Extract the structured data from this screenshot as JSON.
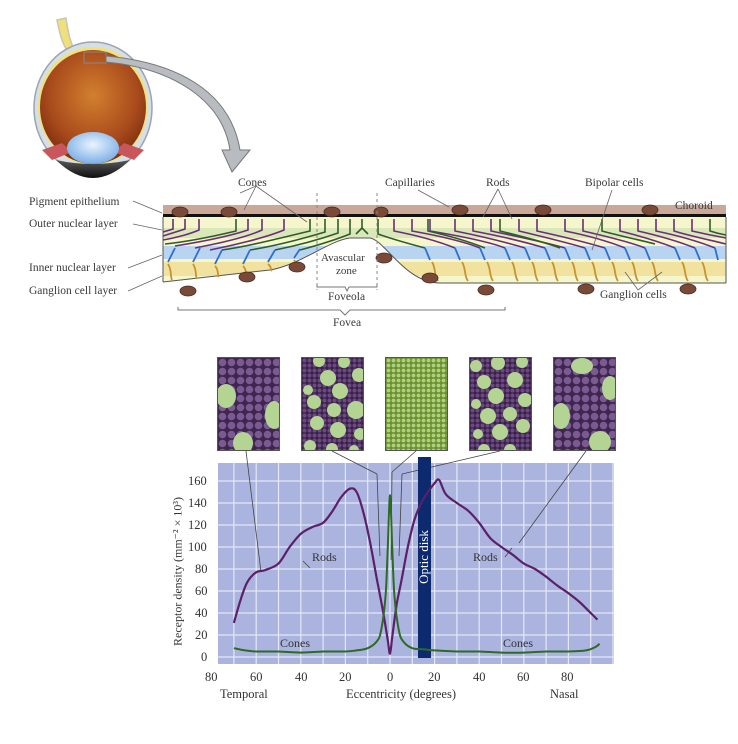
{
  "figure": {
    "eye_illustration": {
      "zoom_box": "retina-detail-box",
      "arrow": "curved-arrow-to-cross-section"
    },
    "retina_cross_section": {
      "left_labels": [
        "Pigment epithelium",
        "Outer nuclear layer",
        "Inner nuclear layer",
        "Ganglion cell layer"
      ],
      "top_labels": {
        "cones": "Cones",
        "capillaries": "Capillaries",
        "rods": "Rods",
        "bipolar_cells": "Bipolar cells",
        "choroid": "Choroid"
      },
      "center_labels": {
        "avascular_zone_line1": "Avascular",
        "avascular_zone_line2": "zone",
        "foveola": "Foveola",
        "fovea": "Fovea"
      },
      "bottom_labels": {
        "ganglion_cells": "Ganglion cells"
      },
      "colors": {
        "choroid": "#c9a89a",
        "capillary": "#7a4a38",
        "rod_fiber": "#6b2e7a",
        "cone_fiber": "#2e5e28",
        "bipolar": "#2f6fd0",
        "ganglion": "#c49430",
        "outer_layer_bg": "#f4f4c6",
        "inner_layer_bg": "#b8d4f0",
        "ganglion_layer_bg": "#f3e6a8"
      }
    },
    "mosaic_panels": [
      {
        "name": "temporal-periphery-mosaic",
        "type": "rods-dominant"
      },
      {
        "name": "temporal-parafovea-mosaic",
        "type": "mixed"
      },
      {
        "name": "foveola-mosaic",
        "type": "cones-only"
      },
      {
        "name": "nasal-parafovea-mosaic",
        "type": "mixed"
      },
      {
        "name": "nasal-periphery-mosaic",
        "type": "rods-dominant"
      }
    ]
  },
  "chart_data": {
    "type": "line",
    "title": "",
    "xlabel": "Eccentricity (degrees)",
    "ylabel": "Receptor density (mm⁻² × 10³)",
    "x_side_labels": {
      "left": "Temporal",
      "right": "Nasal"
    },
    "x_tick_labels": [
      "80",
      "60",
      "40",
      "20",
      "0",
      "20",
      "40",
      "60",
      "80"
    ],
    "x_tick_values": [
      -80,
      -60,
      -40,
      -20,
      0,
      20,
      40,
      60,
      80
    ],
    "y_tick_labels": [
      "160",
      "140",
      "120",
      "100",
      "80",
      "60",
      "40",
      "20",
      "0"
    ],
    "xlim": [
      -80,
      98
    ],
    "ylim": [
      -6,
      176
    ],
    "grid": true,
    "background": "#aab4de",
    "annotations": [
      {
        "text": "Rods",
        "x": -30,
        "y": 95
      },
      {
        "text": "Rods",
        "x": 45,
        "y": 95
      },
      {
        "text": "Cones",
        "x": -40,
        "y": 14
      },
      {
        "text": "Cones",
        "x": 58,
        "y": 14
      },
      {
        "text": "Optic disk",
        "x_range": [
          12.5,
          18.5
        ],
        "vertical": true,
        "color": "#0d2a6e"
      }
    ],
    "series": [
      {
        "name": "Rods",
        "color": "#5c1f6a",
        "x": [
          -70,
          -67,
          -64,
          -60,
          -56,
          -50,
          -45,
          -40,
          -35,
          -30,
          -26,
          -22,
          -18,
          -15,
          -12,
          -9,
          -6,
          -3,
          -1,
          0,
          1,
          3,
          5,
          8,
          11,
          14,
          17,
          20,
          22,
          25,
          30,
          35,
          40,
          45,
          50,
          55,
          60,
          65,
          70,
          75,
          80,
          85,
          90,
          93
        ],
        "values": [
          31,
          52,
          68,
          77,
          79,
          85,
          100,
          112,
          118,
          122,
          132,
          145,
          153,
          150,
          132,
          105,
          72,
          40,
          15,
          3,
          18,
          48,
          68,
          100,
          125,
          140,
          150,
          158,
          161,
          148,
          140,
          133,
          122,
          108,
          100,
          93,
          85,
          80,
          73,
          65,
          58,
          50,
          40,
          34
        ]
      },
      {
        "name": "Cones",
        "color": "#2f6a24",
        "x": [
          -70,
          -65,
          -60,
          -50,
          -40,
          -30,
          -20,
          -15,
          -10,
          -6,
          -4,
          -2,
          -1,
          0,
          1,
          2,
          4,
          6,
          10,
          15,
          20,
          30,
          40,
          50,
          60,
          70,
          80,
          88,
          92,
          94
        ],
        "values": [
          8,
          6,
          5,
          5,
          4,
          5,
          5,
          6,
          8,
          14,
          24,
          55,
          100,
          147,
          100,
          55,
          24,
          14,
          8,
          7,
          6,
          5,
          5,
          4,
          4,
          5,
          5,
          6,
          9,
          12
        ]
      }
    ]
  }
}
